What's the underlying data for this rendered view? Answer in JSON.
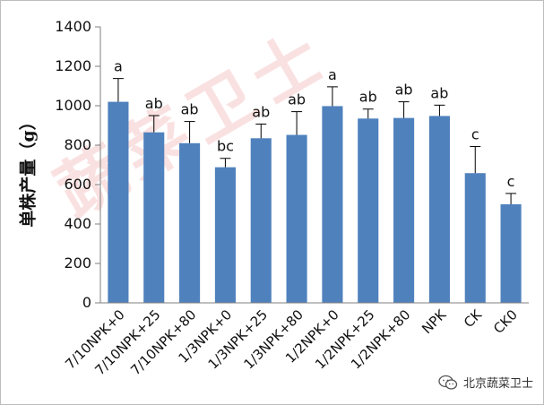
{
  "watermark": "蔬菜卫士",
  "source": "北京蔬菜卫士",
  "chart_data": {
    "type": "bar",
    "title": "",
    "xlabel": "",
    "ylabel": "单株产量（g）",
    "ylim": [
      0,
      1400
    ],
    "yticks": [
      0,
      200,
      400,
      600,
      800,
      1000,
      1200,
      1400
    ],
    "bar_color": "#4f81bd",
    "categories": [
      "7/10NPK+0",
      "7/10NPK+25",
      "7/10NPK+80",
      "1/3NPK+0",
      "1/3NPK+25",
      "1/3NPK+80",
      "1/2NPK+0",
      "1/2NPK+25",
      "1/2NPK+80",
      "NPK",
      "CK",
      "CK0"
    ],
    "values": [
      1020,
      865,
      810,
      688,
      835,
      852,
      998,
      935,
      938,
      948,
      658,
      500
    ],
    "error_upper": [
      118,
      85,
      110,
      45,
      72,
      118,
      98,
      48,
      82,
      55,
      135,
      55
    ],
    "significance": [
      "a",
      "ab",
      "ab",
      "bc",
      "ab",
      "ab",
      "a",
      "ab",
      "ab",
      "ab",
      "c",
      "c"
    ]
  }
}
